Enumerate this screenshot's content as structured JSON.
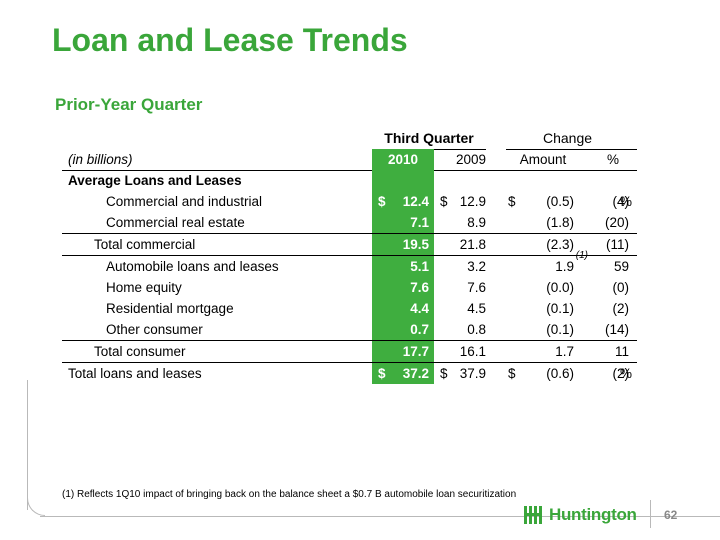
{
  "title": "Loan and Lease Trends",
  "subtitle": "Prior-Year Quarter",
  "table": {
    "group_header_1": "Third Quarter",
    "group_header_2": "Change",
    "units_label": "(in billions)",
    "col_2010": "2010",
    "col_2009": "2009",
    "col_amount": "Amount",
    "col_pct": "%",
    "section_label": "Average Loans and Leases",
    "rows": [
      {
        "label": "Commercial and industrial",
        "dollar_2010": "$",
        "v2010": "12.4",
        "dollar_2009": "$",
        "v2009": "12.9",
        "dollar_amt": "$",
        "amount": "(0.5)",
        "fn": "",
        "pct": "(4)",
        "pct_sign": "%"
      },
      {
        "label": "Commercial real estate",
        "dollar_2010": "",
        "v2010": "7.1",
        "dollar_2009": "",
        "v2009": "8.9",
        "dollar_amt": "",
        "amount": "(1.8)",
        "fn": "",
        "pct": "(20)",
        "pct_sign": ""
      },
      {
        "label": "Total commercial",
        "dollar_2010": "",
        "v2010": "19.5",
        "dollar_2009": "",
        "v2009": "21.8",
        "dollar_amt": "",
        "amount": "(2.3)",
        "fn": "",
        "pct": "(11)",
        "pct_sign": ""
      },
      {
        "label": "Automobile loans and leases",
        "dollar_2010": "",
        "v2010": "5.1",
        "dollar_2009": "",
        "v2009": "3.2",
        "dollar_amt": "",
        "amount": "1.9",
        "fn": "(1)",
        "pct": "59",
        "pct_sign": ""
      },
      {
        "label": "Home equity",
        "dollar_2010": "",
        "v2010": "7.6",
        "dollar_2009": "",
        "v2009": "7.6",
        "dollar_amt": "",
        "amount": "(0.0)",
        "fn": "",
        "pct": "(0)",
        "pct_sign": ""
      },
      {
        "label": "Residential mortgage",
        "dollar_2010": "",
        "v2010": "4.4",
        "dollar_2009": "",
        "v2009": "4.5",
        "dollar_amt": "",
        "amount": "(0.1)",
        "fn": "",
        "pct": "(2)",
        "pct_sign": ""
      },
      {
        "label": "Other consumer",
        "dollar_2010": "",
        "v2010": "0.7",
        "dollar_2009": "",
        "v2009": "0.8",
        "dollar_amt": "",
        "amount": "(0.1)",
        "fn": "",
        "pct": "(14)",
        "pct_sign": ""
      },
      {
        "label": "Total consumer",
        "dollar_2010": "",
        "v2010": "17.7",
        "dollar_2009": "",
        "v2009": "16.1",
        "dollar_amt": "",
        "amount": "1.7",
        "fn": "",
        "pct": "11",
        "pct_sign": ""
      },
      {
        "label": "Total loans and leases",
        "dollar_2010": "$",
        "v2010": "37.2",
        "dollar_2009": "$",
        "v2009": "37.9",
        "dollar_amt": "$",
        "amount": "(0.6)",
        "fn": "",
        "pct": "(2)",
        "pct_sign": "%"
      }
    ]
  },
  "footnote": "(1)  Reflects 1Q10 impact of bringing back on the balance sheet a $0.7 B automobile loan securitization",
  "logo_text": "Huntington",
  "page_number": "62",
  "colors": {
    "accent": "#3aa63a",
    "highlight_column": "#3fae3f"
  }
}
